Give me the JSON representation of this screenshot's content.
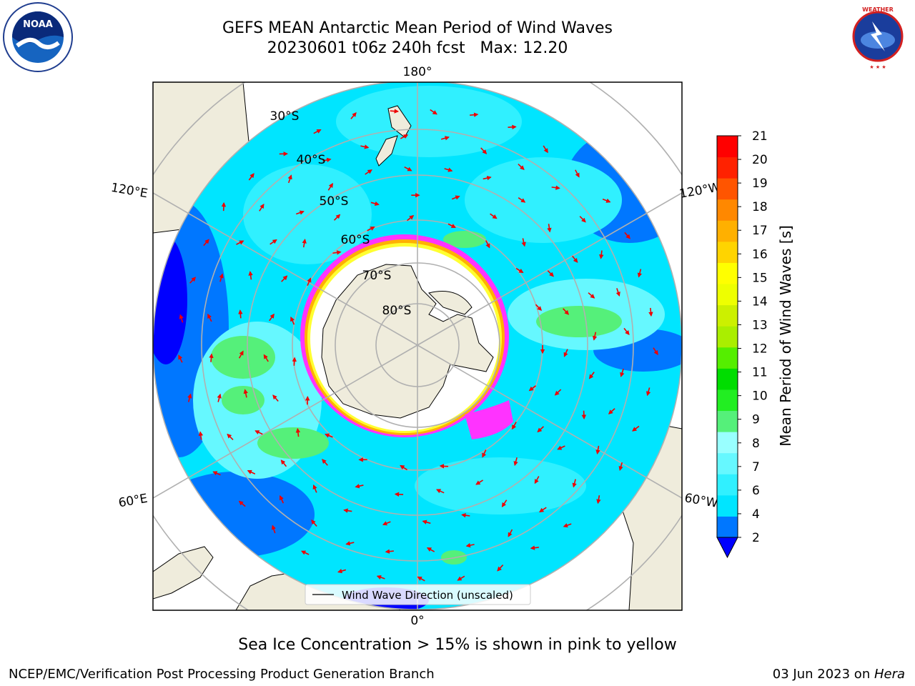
{
  "header": {
    "title": "GEFS MEAN Antarctic Mean Period of Wind Waves",
    "subtitle": "20230601 t06z 240h fcst   Max: 12.20"
  },
  "logos": {
    "left": "NOAA",
    "right": "NATIONAL WEATHER SERVICE"
  },
  "map": {
    "projection": "south polar stereographic",
    "longitude_labels": [
      "180°",
      "120°E",
      "120°W",
      "60°E",
      "60°W",
      "0°"
    ],
    "latitude_labels": [
      "30°S",
      "40°S",
      "50°S",
      "60°S",
      "70°S",
      "80°S"
    ],
    "legend_label": "Wind Wave Direction (unscaled)",
    "arrow_color": "#ee0000",
    "land_color": "#efecdc",
    "ice_colors": [
      "#ff33ff",
      "#ffb000",
      "#ffff30"
    ]
  },
  "colorbar": {
    "label": "Mean Period of Wind Waves [s]",
    "ticks": [
      "2",
      "4",
      "6",
      "7",
      "8",
      "9",
      "10",
      "11",
      "12",
      "13",
      "14",
      "15",
      "16",
      "17",
      "18",
      "19",
      "20",
      "21"
    ],
    "colors": [
      "#0077ff",
      "#00e5ff",
      "#30f0ff",
      "#66f8ff",
      "#99ffff",
      "#55f07a",
      "#22ee22",
      "#00dd00",
      "#55ee00",
      "#aaee00",
      "#ccf000",
      "#eeff00",
      "#ffff00",
      "#ffd400",
      "#ffb000",
      "#ff8800",
      "#ff5500",
      "#ff2200",
      "#ff0000"
    ],
    "extend_below_color": "#0000ff"
  },
  "caption": "Sea Ice Concentration > 15% is shown in pink to yellow",
  "footer": {
    "left": "NCEP/EMC/Verification Post Processing Product Generation Branch",
    "right_prefix": "03 Jun 2023 on ",
    "right_emph": "Hera"
  }
}
